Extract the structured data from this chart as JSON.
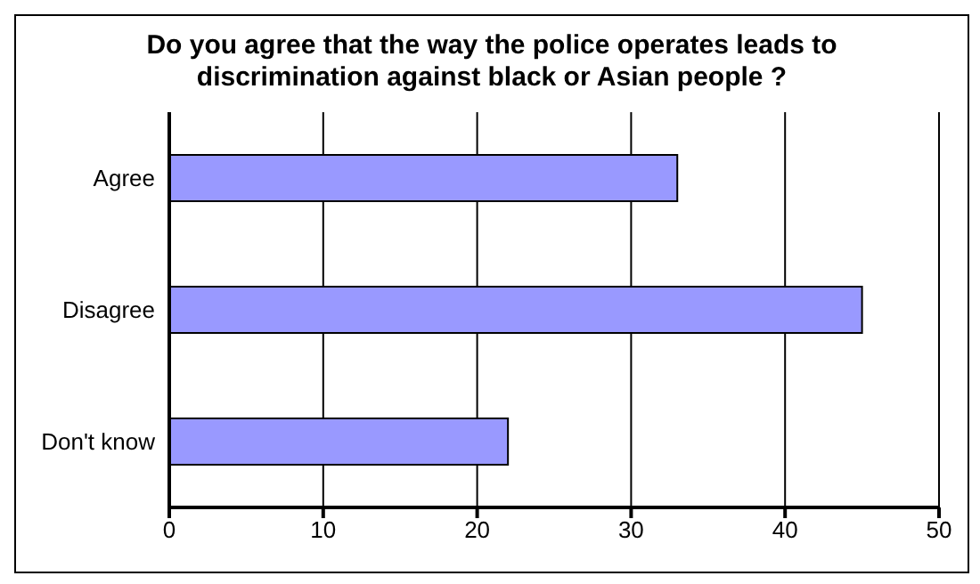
{
  "chart_data": {
    "type": "bar",
    "orientation": "horizontal",
    "title": "Do you agree that the way the police operates leads to discrimination against black or Asian people ?",
    "categories": [
      "Agree",
      "Disagree",
      "Don't know"
    ],
    "values": [
      33,
      45,
      22
    ],
    "color": "#9999ff",
    "xlim": [
      0,
      50
    ],
    "xticks": [
      0,
      10,
      20,
      30,
      40,
      50
    ],
    "grid": "x",
    "legend": false
  }
}
